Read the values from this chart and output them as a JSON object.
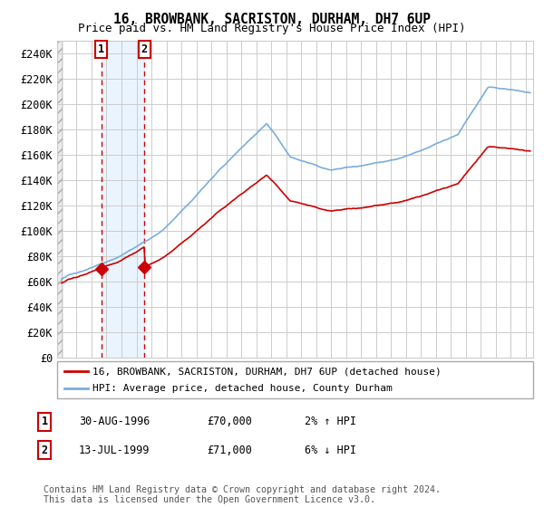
{
  "title": "16, BROWBANK, SACRISTON, DURHAM, DH7 6UP",
  "subtitle": "Price paid vs. HM Land Registry's House Price Index (HPI)",
  "ylim": [
    0,
    250000
  ],
  "yticks": [
    0,
    20000,
    40000,
    60000,
    80000,
    100000,
    120000,
    140000,
    160000,
    180000,
    200000,
    220000,
    240000
  ],
  "ytick_labels": [
    "£0",
    "£20K",
    "£40K",
    "£60K",
    "£80K",
    "£100K",
    "£120K",
    "£140K",
    "£160K",
    "£180K",
    "£200K",
    "£220K",
    "£240K"
  ],
  "sale1_date": 1996.664,
  "sale1_price": 70000,
  "sale1_label": "1",
  "sale1_info": "30-AUG-1996",
  "sale1_price_str": "£70,000",
  "sale1_hpi": "2% ↑ HPI",
  "sale2_date": 1999.536,
  "sale2_price": 71000,
  "sale2_label": "2",
  "sale2_info": "13-JUL-1999",
  "sale2_price_str": "£71,000",
  "sale2_hpi": "6% ↓ HPI",
  "hpi_color": "#7aaddc",
  "property_color": "#cc0000",
  "marker_color": "#cc0000",
  "shade_color": "#ddeeff",
  "legend_label1": "16, BROWBANK, SACRISTON, DURHAM, DH7 6UP (detached house)",
  "legend_label2": "HPI: Average price, detached house, County Durham",
  "footer": "Contains HM Land Registry data © Crown copyright and database right 2024.\nThis data is licensed under the Open Government Licence v3.0.",
  "xstart": 1993.7,
  "xend": 2025.5
}
